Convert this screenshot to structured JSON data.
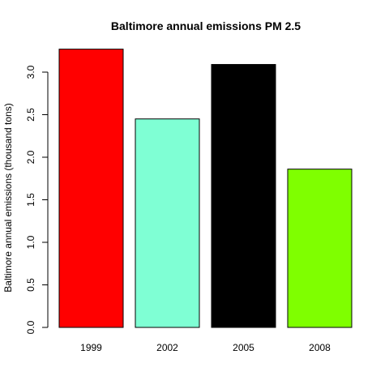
{
  "chart_data": {
    "type": "bar",
    "title": "Baltimore annual emissions PM 2.5",
    "xlabel": "",
    "ylabel": "Baltimore annual emissions (thousand tons)",
    "categories": [
      "1999",
      "2002",
      "2005",
      "2008"
    ],
    "values": [
      3.27,
      2.45,
      3.09,
      1.86
    ],
    "colors": [
      "#ff0000",
      "#7fffd4",
      "#000000",
      "#7fff00"
    ],
    "ylim": [
      0,
      3.27
    ],
    "yticks": [
      0.0,
      0.5,
      1.0,
      1.5,
      2.0,
      2.5,
      3.0
    ],
    "ytick_labels": [
      "0.0",
      "0.5",
      "1.0",
      "1.5",
      "2.0",
      "2.5",
      "3.0"
    ],
    "grid": false,
    "legend": "none"
  }
}
